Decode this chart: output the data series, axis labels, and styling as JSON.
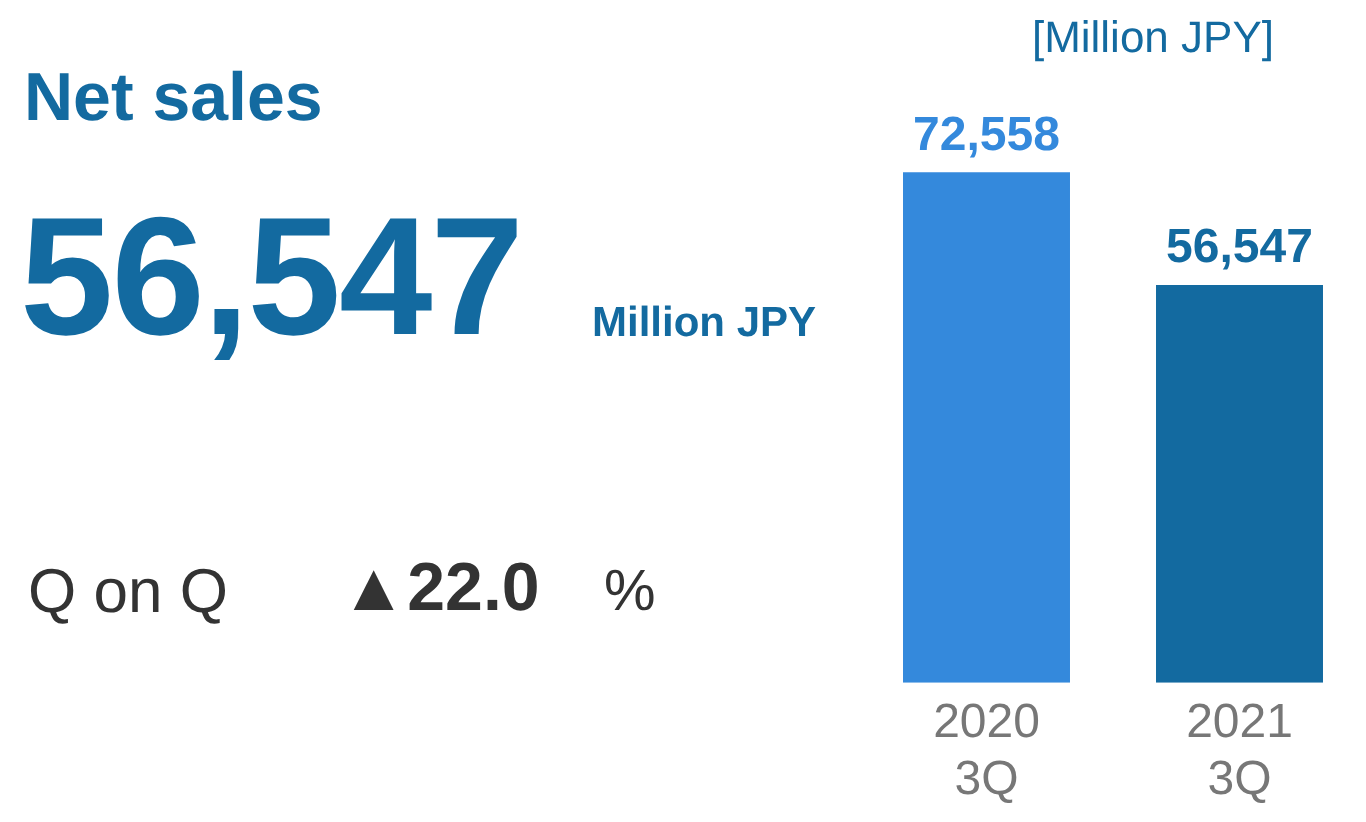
{
  "chart_data": [
    {
      "type": "other",
      "title": "Net sales",
      "annotations": [
        "56,547",
        "Million JPY",
        "Q on Q",
        "▲22.0",
        "%"
      ]
    },
    {
      "type": "bar",
      "ylabel": "[Million JPY]",
      "categories": [
        "2020 3Q",
        "2021 3Q"
      ],
      "values": [
        72558,
        56547
      ],
      "colors": [
        "#3489dc",
        "#136aa0"
      ],
      "value_labels": [
        "72,558",
        "56,547"
      ],
      "grid": false,
      "legend": false
    }
  ]
}
